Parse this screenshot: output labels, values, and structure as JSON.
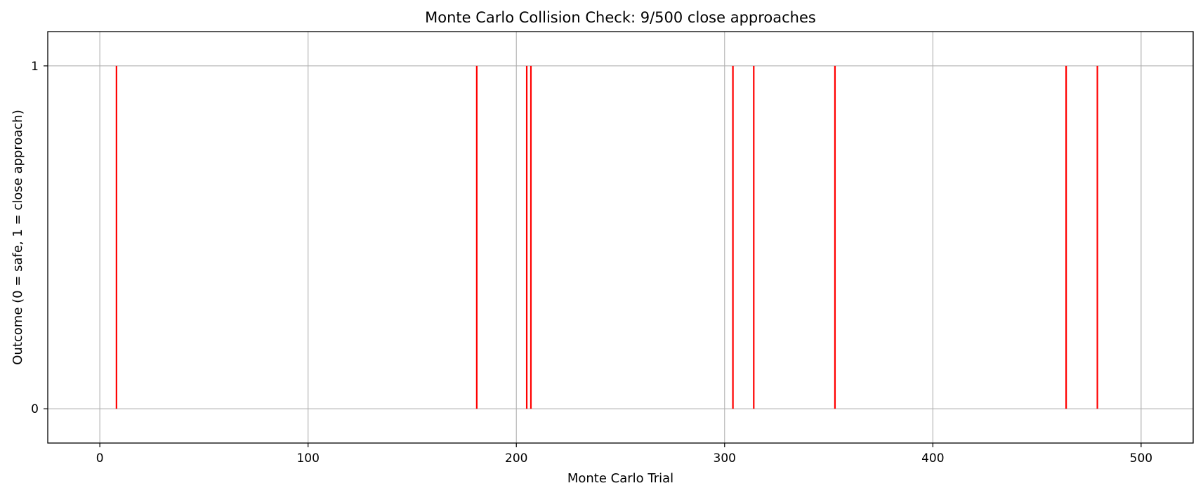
{
  "chart_data": {
    "type": "bar",
    "title": "Monte Carlo Collision Check: 9/500 close approaches",
    "xlabel": "Monte Carlo Trial",
    "ylabel": "Outcome (0 = safe, 1 = close approach)",
    "xlim": [
      -25,
      525
    ],
    "ylim": [
      -0.1,
      1.1
    ],
    "xticks": [
      0,
      100,
      200,
      300,
      400,
      500
    ],
    "yticks": [
      0,
      1
    ],
    "grid": true,
    "legend": "none",
    "series": [
      {
        "x": [
          8,
          181,
          205,
          207,
          304,
          314,
          353,
          464,
          479
        ],
        "values": [
          1,
          1,
          1,
          1,
          1,
          1,
          1,
          1,
          1
        ],
        "color": "#ff0000"
      }
    ]
  }
}
